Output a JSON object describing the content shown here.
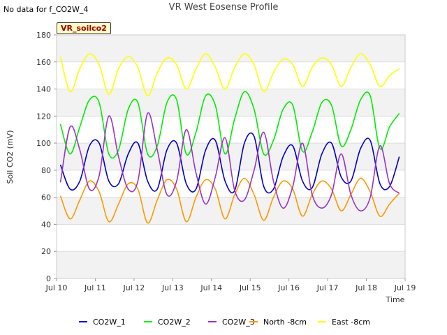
{
  "header": {
    "no_data_text": "No data for f_CO2W_4",
    "title": "VR West Eosense Profile",
    "site_badge": "VR_soilco2"
  },
  "colors": {
    "CO2W_1": "#0000cc",
    "CO2W_2": "#00ee00",
    "CO2W_3": "#9933cc",
    "North -8cm": "#ff9900",
    "East -8cm": "#ffff00",
    "band": "#f2f2f2",
    "grid": "#dddddd"
  },
  "chart_data": {
    "type": "line",
    "title": "VR West Eosense Profile",
    "xlabel": "Time",
    "ylabel": "Soil CO2 (mV)",
    "xlim": [
      10.0,
      19.0
    ],
    "ylim": [
      0,
      180
    ],
    "grid": true,
    "legend_position": "bottom",
    "x_ticks": [
      "Jul 10",
      "Jul 11",
      "Jul 12",
      "Jul 13",
      "Jul 14",
      "Jul 15",
      "Jul 16",
      "Jul 17",
      "Jul 18",
      "Jul 19"
    ],
    "y_ticks": [
      0,
      20,
      40,
      60,
      80,
      100,
      120,
      140,
      160,
      180
    ],
    "x": [
      10.1,
      10.35,
      10.6,
      10.85,
      11.1,
      11.35,
      11.6,
      11.85,
      12.1,
      12.35,
      12.6,
      12.85,
      13.1,
      13.35,
      13.6,
      13.85,
      14.1,
      14.35,
      14.6,
      14.85,
      15.1,
      15.35,
      15.6,
      15.85,
      16.1,
      16.35,
      16.6,
      16.85,
      17.1,
      17.35,
      17.6,
      17.85,
      18.1,
      18.35,
      18.6,
      18.85
    ],
    "series": [
      {
        "name": "CO2W_1",
        "values": [
          84,
          66,
          72,
          98,
          100,
          72,
          70,
          92,
          100,
          72,
          66,
          95,
          100,
          70,
          66,
          95,
          102,
          72,
          65,
          100,
          105,
          68,
          66,
          90,
          98,
          72,
          67,
          92,
          100,
          75,
          72,
          96,
          102,
          70,
          68,
          90
        ]
      },
      {
        "name": "CO2W_2",
        "values": [
          114,
          92,
          112,
          132,
          130,
          92,
          95,
          125,
          130,
          92,
          98,
          130,
          132,
          92,
          108,
          135,
          128,
          92,
          118,
          138,
          125,
          92,
          102,
          125,
          128,
          94,
          108,
          130,
          128,
          98,
          110,
          132,
          135,
          96,
          112,
          122
        ]
      },
      {
        "name": "CO2W_3",
        "values": [
          71,
          112,
          95,
          66,
          76,
          120,
          90,
          66,
          72,
          122,
          95,
          62,
          72,
          110,
          78,
          55,
          75,
          104,
          65,
          58,
          80,
          108,
          72,
          52,
          68,
          100,
          62,
          52,
          62,
          92,
          62,
          50,
          60,
          98,
          70,
          63
        ]
      },
      {
        "name": "North -8cm",
        "values": [
          61,
          44,
          58,
          72,
          64,
          42,
          55,
          70,
          66,
          41,
          58,
          73,
          66,
          42,
          60,
          73,
          66,
          44,
          62,
          74,
          62,
          43,
          60,
          72,
          66,
          46,
          62,
          72,
          66,
          50,
          62,
          74,
          64,
          46,
          55,
          63
        ]
      },
      {
        "name": "East -8cm",
        "values": [
          164,
          138,
          155,
          166,
          158,
          136,
          155,
          164,
          156,
          135,
          152,
          163,
          158,
          140,
          155,
          166,
          156,
          140,
          156,
          166,
          158,
          138,
          152,
          162,
          158,
          142,
          156,
          163,
          158,
          142,
          156,
          166,
          158,
          142,
          150,
          155
        ]
      }
    ]
  }
}
